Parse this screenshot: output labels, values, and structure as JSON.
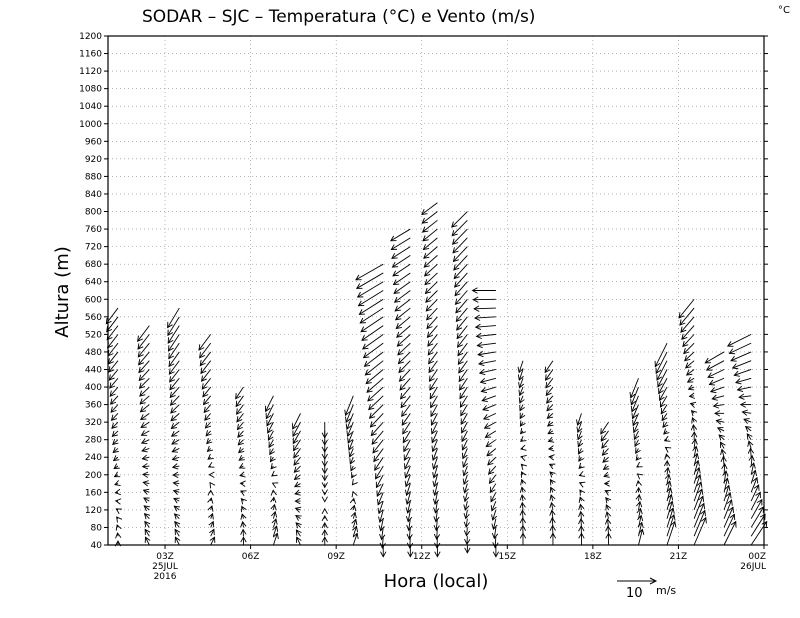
{
  "chart_data": {
    "type": "wind-barb-timeheight",
    "title": "SODAR – SJC – Temperatura (°C) e Vento (m/s)",
    "temperature_unit": "°C",
    "xlabel": "Hora (local)",
    "ylabel": "Altura (m)",
    "ylim": [
      40,
      1200
    ],
    "ystep": 40,
    "xlim_hours": [
      0,
      23
    ],
    "x_ticks": [
      {
        "hour": 2,
        "label": "03Z",
        "date": "25JUL",
        "year": "2016"
      },
      {
        "hour": 5,
        "label": "06Z",
        "date": "",
        "year": ""
      },
      {
        "hour": 8,
        "label": "09Z",
        "date": "",
        "year": ""
      },
      {
        "hour": 11,
        "label": "12Z",
        "date": "",
        "year": ""
      },
      {
        "hour": 14,
        "label": "15Z",
        "date": "",
        "year": ""
      },
      {
        "hour": 17,
        "label": "18Z",
        "date": "",
        "year": ""
      },
      {
        "hour": 20,
        "label": "21Z",
        "date": "",
        "year": ""
      },
      {
        "hour": 23,
        "label": "00Z",
        "date": "26JUL",
        "year": ""
      }
    ],
    "grid": "dotted",
    "reference_vector": {
      "speed": 10,
      "label": "10",
      "unit": "m/s"
    },
    "profiles": [
      {
        "hour": 0.35,
        "top": 580,
        "u0": 0,
        "v0": 1,
        "u1": -3,
        "v1": -4
      },
      {
        "hour": 1.45,
        "top": 540,
        "u0": -1,
        "v0": 2,
        "u1": -3,
        "v1": -4
      },
      {
        "hour": 2.5,
        "top": 580,
        "u0": -1,
        "v0": 2,
        "u1": -3,
        "v1": -5
      },
      {
        "hour": 3.6,
        "top": 520,
        "u0": 1,
        "v0": 2,
        "u1": -3,
        "v1": -4
      },
      {
        "hour": 4.75,
        "top": 400,
        "u0": 0,
        "v0": 2,
        "u1": -2,
        "v1": -3
      },
      {
        "hour": 5.8,
        "top": 380,
        "u0": 1,
        "v0": 3,
        "u1": -2,
        "v1": -4
      },
      {
        "hour": 6.75,
        "top": 340,
        "u0": -1,
        "v0": 2,
        "u1": -2,
        "v1": -4
      },
      {
        "hour": 7.6,
        "top": 320,
        "u0": 0,
        "v0": 2,
        "u1": 0,
        "v1": -4
      },
      {
        "hour": 8.6,
        "top": 380,
        "u0": 1,
        "v0": 3,
        "u1": -2,
        "v1": -5
      },
      {
        "hour": 9.65,
        "top": 680,
        "u0": 0,
        "v0": -3,
        "u1": -7,
        "v1": -4
      },
      {
        "hour": 10.6,
        "top": 760,
        "u0": 0,
        "v0": -3,
        "u1": -5,
        "v1": -3
      },
      {
        "hour": 11.55,
        "top": 820,
        "u0": 0,
        "v0": -3,
        "u1": -4,
        "v1": -3
      },
      {
        "hour": 12.6,
        "top": 800,
        "u0": 0,
        "v0": -2,
        "u1": -4,
        "v1": -4
      },
      {
        "hour": 13.6,
        "top": 620,
        "u0": 0,
        "v0": -3,
        "u1": -6,
        "v1": 0
      },
      {
        "hour": 14.55,
        "top": 460,
        "u0": 0,
        "v0": 3,
        "u1": -1,
        "v1": -3
      },
      {
        "hour": 15.6,
        "top": 460,
        "u0": 0,
        "v0": 3,
        "u1": -2,
        "v1": -3
      },
      {
        "hour": 16.6,
        "top": 340,
        "u0": 0,
        "v0": 3,
        "u1": -1,
        "v1": -3
      },
      {
        "hour": 17.55,
        "top": 320,
        "u0": 0,
        "v0": 3,
        "u1": -2,
        "v1": -3
      },
      {
        "hour": 18.6,
        "top": 420,
        "u0": 1,
        "v0": 4,
        "u1": -2,
        "v1": -5
      },
      {
        "hour": 19.6,
        "top": 500,
        "u0": 2,
        "v0": 6,
        "u1": -3,
        "v1": -6
      },
      {
        "hour": 20.55,
        "top": 610,
        "u0": 3,
        "v0": 7,
        "u1": -4,
        "v1": -5
      },
      {
        "hour": 21.6,
        "top": 490,
        "u0": 3,
        "v0": 6,
        "u1": -5,
        "v1": -3
      },
      {
        "hour": 22.55,
        "top": 520,
        "u0": 4,
        "v0": 6,
        "u1": -6,
        "v1": -3
      }
    ]
  }
}
